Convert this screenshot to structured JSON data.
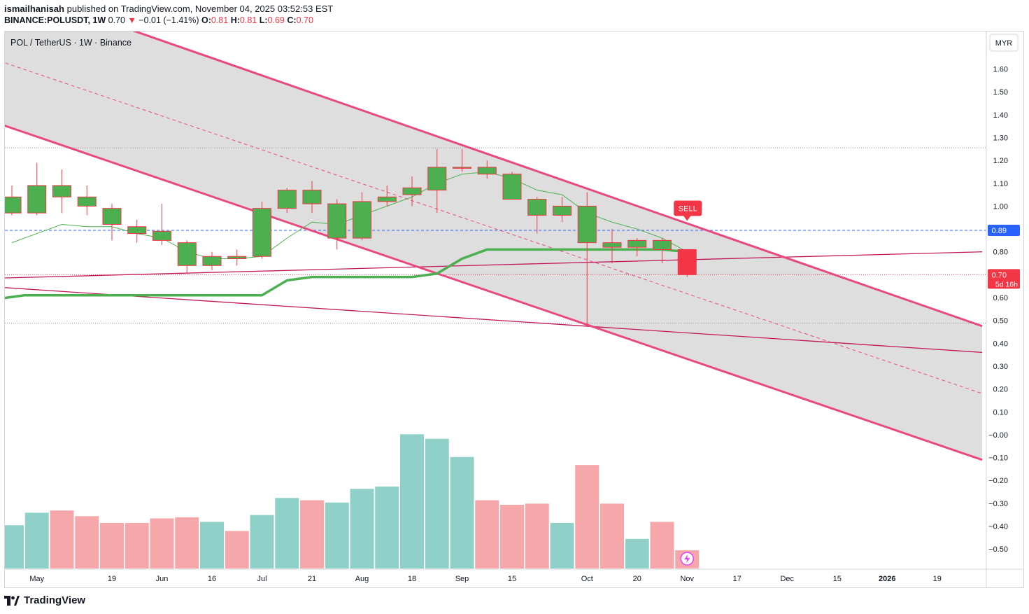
{
  "header": {
    "publisher": "ismailhanisah",
    "published_text": "published on TradingView.com, November 04, 2025 03:52:53 EST",
    "symbol": "BINANCE:POLUSDT, 1W",
    "last": "0.70",
    "change": "−0.01 (−1.41%)",
    "o_label": "O:",
    "o_val": "0.81",
    "h_label": "H:",
    "h_val": "0.81",
    "l_label": "L:",
    "l_val": "0.69",
    "c_label": "C:",
    "c_val": "0.70"
  },
  "legend": {
    "title": "POL / TetherUS · 1W · Binance"
  },
  "currency_button": "MYR",
  "footer": {
    "brand": "TradingView"
  },
  "colors": {
    "up": "#4caf50",
    "down": "#f23645",
    "channel": "#e84a7f",
    "vol_up": "#8fd0c9",
    "vol_down": "#f5a7a9",
    "sell": "#f23645",
    "price_line": "#2962ff",
    "ma": "#4caf50"
  },
  "chart_data": {
    "type": "candlestick",
    "y_axis": {
      "min": -0.55,
      "max": 1.7,
      "ticks": [
        "1.60",
        "1.50",
        "1.40",
        "1.30",
        "1.20",
        "1.10",
        "1.00",
        "0.90",
        "0.80",
        "0.70",
        "0.60",
        "0.50",
        "0.40",
        "0.30",
        "0.20",
        "0.10",
        "−0.00",
        "−0.10",
        "−0.20",
        "−0.30",
        "−0.40",
        "−0.50"
      ],
      "tick_values": [
        1.6,
        1.5,
        1.4,
        1.3,
        1.2,
        1.1,
        1.0,
        0.9,
        0.8,
        0.7,
        0.6,
        0.5,
        0.4,
        0.3,
        0.2,
        0.1,
        0.0,
        -0.1,
        -0.2,
        -0.3,
        -0.4,
        -0.5
      ]
    },
    "x_axis": {
      "labels": [
        "May",
        "19",
        "Jun",
        "16",
        "Jul",
        "21",
        "Aug",
        "18",
        "Sep",
        "15",
        "Oct",
        "20",
        "Nov",
        "17",
        "Dec",
        "15",
        "2026",
        "19"
      ],
      "label_bar_index": [
        1,
        4,
        6,
        8,
        10,
        12,
        14,
        16,
        18,
        20,
        23,
        25,
        27,
        29,
        31,
        33,
        35,
        37
      ],
      "bold": [
        "2026"
      ]
    },
    "candles": [
      {
        "o": 0.97,
        "h": 1.09,
        "l": 0.96,
        "c": 1.04
      },
      {
        "o": 0.97,
        "h": 1.19,
        "l": 0.96,
        "c": 1.09
      },
      {
        "o": 1.09,
        "h": 1.16,
        "l": 0.97,
        "c": 1.04
      },
      {
        "o": 1.04,
        "h": 1.09,
        "l": 0.96,
        "c": 1.0
      },
      {
        "o": 0.99,
        "h": 1.01,
        "l": 0.85,
        "c": 0.92
      },
      {
        "o": 0.91,
        "h": 0.94,
        "l": 0.84,
        "c": 0.88
      },
      {
        "o": 0.89,
        "h": 1.01,
        "l": 0.83,
        "c": 0.85
      },
      {
        "o": 0.84,
        "h": 0.85,
        "l": 0.71,
        "c": 0.74
      },
      {
        "o": 0.74,
        "h": 0.8,
        "l": 0.72,
        "c": 0.78
      },
      {
        "o": 0.78,
        "h": 0.81,
        "l": 0.74,
        "c": 0.77
      },
      {
        "o": 0.78,
        "h": 1.02,
        "l": 0.77,
        "c": 0.99
      },
      {
        "o": 0.99,
        "h": 1.08,
        "l": 0.97,
        "c": 1.07
      },
      {
        "o": 1.07,
        "h": 1.11,
        "l": 0.97,
        "c": 1.01
      },
      {
        "o": 0.86,
        "h": 1.03,
        "l": 0.81,
        "c": 1.01
      },
      {
        "o": 0.86,
        "h": 1.06,
        "l": 0.85,
        "c": 1.02
      },
      {
        "o": 1.02,
        "h": 1.09,
        "l": 1.0,
        "c": 1.04
      },
      {
        "o": 1.05,
        "h": 1.13,
        "l": 1.0,
        "c": 1.08
      },
      {
        "o": 1.07,
        "h": 1.25,
        "l": 0.97,
        "c": 1.17
      },
      {
        "o": 1.17,
        "h": 1.25,
        "l": 1.15,
        "c": 1.17
      },
      {
        "o": 1.17,
        "h": 1.2,
        "l": 1.12,
        "c": 1.14
      },
      {
        "o": 1.14,
        "h": 1.15,
        "l": 1.03,
        "c": 1.03
      },
      {
        "o": 1.03,
        "h": 1.04,
        "l": 0.88,
        "c": 0.96
      },
      {
        "o": 0.96,
        "h": 1.04,
        "l": 0.93,
        "c": 1.0
      },
      {
        "o": 1.0,
        "h": 1.06,
        "l": 0.48,
        "c": 0.84
      },
      {
        "o": 0.84,
        "h": 0.9,
        "l": 0.75,
        "c": 0.82
      },
      {
        "o": 0.82,
        "h": 0.86,
        "l": 0.78,
        "c": 0.85
      },
      {
        "o": 0.85,
        "h": 0.86,
        "l": 0.75,
        "c": 0.81
      },
      {
        "o": 0.81,
        "h": 0.81,
        "l": 0.69,
        "c": 0.7
      }
    ],
    "volume": [
      38,
      49,
      51,
      46,
      40,
      40,
      44,
      45,
      41,
      33,
      47,
      62,
      60,
      58,
      70,
      72,
      118,
      114,
      98,
      60,
      56,
      57,
      40,
      91,
      57,
      26,
      41,
      16
    ],
    "volume_max": 120,
    "ma_line": [
      0.84,
      0.88,
      0.92,
      0.91,
      0.91,
      0.88,
      0.86,
      0.8,
      0.77,
      0.77,
      0.78,
      0.86,
      0.93,
      0.92,
      0.96,
      1.0,
      1.04,
      1.1,
      1.14,
      1.15,
      1.12,
      1.07,
      1.05,
      0.97,
      0.93,
      0.9,
      0.86,
      0.8
    ],
    "thick_line": [
      {
        "i": -0.5,
        "v": 0.595
      },
      {
        "i": 0.5,
        "v": 0.61
      },
      {
        "i": 10,
        "v": 0.61
      },
      {
        "i": 11,
        "v": 0.675
      },
      {
        "i": 12,
        "v": 0.69
      },
      {
        "i": 16,
        "v": 0.69
      },
      {
        "i": 17,
        "v": 0.705
      },
      {
        "i": 18,
        "v": 0.77
      },
      {
        "i": 19,
        "v": 0.81
      },
      {
        "i": 26,
        "v": 0.81
      },
      {
        "i": 27,
        "v": 0.8
      }
    ],
    "channel_upper": [
      {
        "i": 4,
        "v": 1.8
      },
      {
        "i": 38.8,
        "v": 0.475
      }
    ],
    "channel_lower": [
      {
        "i": -0.5,
        "v": 1.36
      },
      {
        "i": 38.8,
        "v": -0.11
      }
    ],
    "channel_mid": [
      {
        "i": -0.5,
        "v": 1.635
      },
      {
        "i": 38.8,
        "v": 0.18
      }
    ],
    "trend_rising": [
      {
        "i": -0.5,
        "v": 0.685
      },
      {
        "i": 38.8,
        "v": 0.8
      }
    ],
    "trend_falling": [
      {
        "i": -0.5,
        "v": 0.645
      },
      {
        "i": 38.8,
        "v": 0.36
      }
    ],
    "dotted_levels": [
      1.255,
      0.488,
      0.7
    ],
    "dashed_level": 0.894,
    "sell_signal": {
      "label": "SELL",
      "i": 27,
      "v": 0.92
    },
    "price_tags": [
      {
        "label": "0.89",
        "value": 0.894,
        "color": "#2962ff"
      },
      {
        "label": "0.70",
        "sub": "5d 16h",
        "value": 0.7,
        "color": "#f23645"
      }
    ]
  }
}
